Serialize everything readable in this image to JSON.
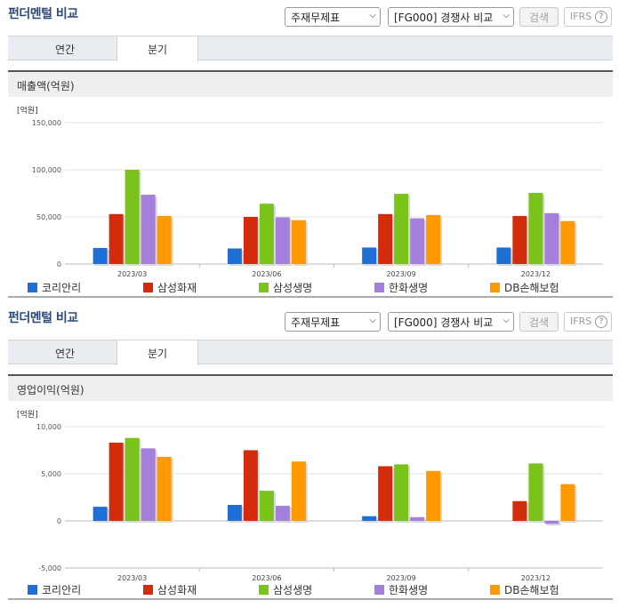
{
  "header": {
    "title": "펀더멘털 비교",
    "statement_select": "주재무제표",
    "peer_select": "[FG000] 경쟁사 비교",
    "search_label": "검색",
    "ifrs_label": "IFRS",
    "ifrs_help": "?"
  },
  "tabs": [
    {
      "label": "연간",
      "active": false
    },
    {
      "label": "분기",
      "active": true
    }
  ],
  "colors": {
    "코리안리": "#1f6fd6",
    "삼성화재": "#d42c0a",
    "삼성생명": "#79c31a",
    "한화생명": "#a57fdc",
    "DB손해보험": "#ff9900"
  },
  "chart_data": [
    {
      "type": "bar",
      "title": "매출액(억원)",
      "unit_label": "[억원]",
      "categories": [
        "2023/03",
        "2023/06",
        "2023/09",
        "2023/12"
      ],
      "ylim": [
        0,
        150000
      ],
      "yticks": [
        0,
        50000,
        100000,
        150000
      ],
      "ytick_labels": [
        "0",
        "50,000",
        "100,000",
        "150,000"
      ],
      "grid": true,
      "legend_position": "bottom",
      "series": [
        {
          "name": "코리안리",
          "values": [
            17000,
            16500,
            17500,
            17500
          ]
        },
        {
          "name": "삼성화재",
          "values": [
            53000,
            50000,
            53000,
            51000
          ]
        },
        {
          "name": "삼성생명",
          "values": [
            100000,
            64000,
            74500,
            75500
          ]
        },
        {
          "name": "한화생명",
          "values": [
            73500,
            49500,
            48500,
            54000
          ]
        },
        {
          "name": "DB손해보험",
          "values": [
            51000,
            46500,
            52000,
            45500
          ]
        }
      ]
    },
    {
      "type": "bar",
      "title": "영업이익(억원)",
      "unit_label": "[억원]",
      "categories": [
        "2023/03",
        "2023/06",
        "2023/09",
        "2023/12"
      ],
      "ylim": [
        -5000,
        10000
      ],
      "yticks": [
        -5000,
        0,
        5000,
        10000
      ],
      "ytick_labels": [
        "-5,000",
        "0",
        "5,000",
        "10,000"
      ],
      "grid": true,
      "legend_position": "bottom",
      "series": [
        {
          "name": "코리안리",
          "values": [
            1500,
            1700,
            500,
            0
          ]
        },
        {
          "name": "삼성화재",
          "values": [
            8300,
            7500,
            5800,
            2100
          ]
        },
        {
          "name": "삼성생명",
          "values": [
            8800,
            3200,
            6000,
            6100
          ]
        },
        {
          "name": "한화생명",
          "values": [
            7700,
            1600,
            400,
            -300
          ]
        },
        {
          "name": "DB손해보험",
          "values": [
            6800,
            6300,
            5300,
            3900
          ]
        }
      ]
    }
  ]
}
